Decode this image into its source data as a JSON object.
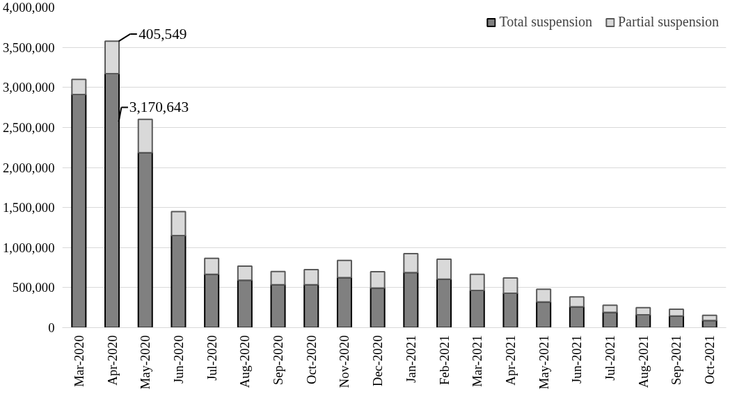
{
  "chart_data": {
    "type": "bar",
    "stacked": true,
    "categories": [
      "Mar-2020",
      "Apr-2020",
      "May-2020",
      "Jun-2020",
      "Jul-2020",
      "Aug-2020",
      "Sep-2020",
      "Oct-2020",
      "Nov-2020",
      "Dec-2020",
      "Jan-2021",
      "Feb-2021",
      "Mar-2021",
      "Apr-2021",
      "May-2021",
      "Jun-2021",
      "Jul-2021",
      "Aug-2021",
      "Sep-2021",
      "Oct-2021"
    ],
    "series": [
      {
        "name": "Total suspension",
        "color": "#808080",
        "values": [
          2910000,
          3170643,
          2185000,
          1150000,
          665000,
          593000,
          535000,
          535000,
          624000,
          494000,
          688000,
          605000,
          465000,
          430000,
          320000,
          260000,
          190000,
          160000,
          145000,
          90000
        ],
        "value_labels": [
          null,
          "3,170,643",
          null,
          null,
          null,
          null,
          null,
          null,
          null,
          null,
          null,
          null,
          null,
          null,
          null,
          null,
          null,
          null,
          null,
          null
        ]
      },
      {
        "name": "Partial suspension",
        "color": "#d9d9d9",
        "values": [
          190000,
          405549,
          415000,
          300000,
          200000,
          175000,
          165000,
          190000,
          215000,
          205000,
          235000,
          250000,
          200000,
          190000,
          160000,
          125000,
          90000,
          90000,
          85000,
          65000
        ],
        "value_labels": [
          null,
          "405,549",
          null,
          null,
          null,
          null,
          null,
          null,
          null,
          null,
          null,
          null,
          null,
          null,
          null,
          null,
          null,
          null,
          null,
          null
        ]
      }
    ],
    "ylim": [
      0,
      4000000
    ],
    "yticks": [
      0,
      {
        "value": 500000,
        "label": "500,000"
      },
      {
        "value": 1000000,
        "label": "1,000,000"
      },
      {
        "value": 1500000,
        "label": "1,500,000"
      },
      {
        "value": 2000000,
        "label": "2,000,000"
      },
      {
        "value": 2500000,
        "label": "2,500,000"
      },
      {
        "value": 3000000,
        "label": "3,000,000"
      },
      {
        "value": 3500000,
        "label": "3,500,000"
      },
      {
        "value": 4000000,
        "label": "4,000,000"
      }
    ],
    "grid": "y",
    "legend": "top right"
  }
}
